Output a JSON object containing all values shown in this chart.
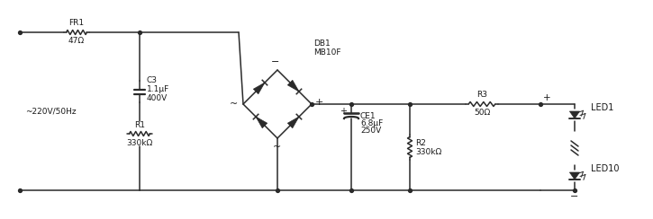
{
  "bg_color": "#ffffff",
  "line_color": "#2a2a2a",
  "text_color": "#1a1a1a",
  "figsize": [
    7.25,
    2.44
  ],
  "dpi": 100,
  "source_label": "~220V/50Hz",
  "FR1_label": "FR1",
  "FR1_val": "47Ω",
  "C3_label": "C3",
  "C3_val1": "1.1μF",
  "C3_val2": "400V",
  "R1_label": "R1",
  "R1_val": "330kΩ",
  "DB1_label": "DB1\nMB10F",
  "CE1_label": "CE1",
  "CE1_val1": "6.8μF",
  "CE1_val2": "250V",
  "R2_label": "R2",
  "R2_val": "330kΩ",
  "R3_label": "R3",
  "R3_val": "50Ω",
  "LED1_label": "LED1",
  "LED10_label": "LED10"
}
